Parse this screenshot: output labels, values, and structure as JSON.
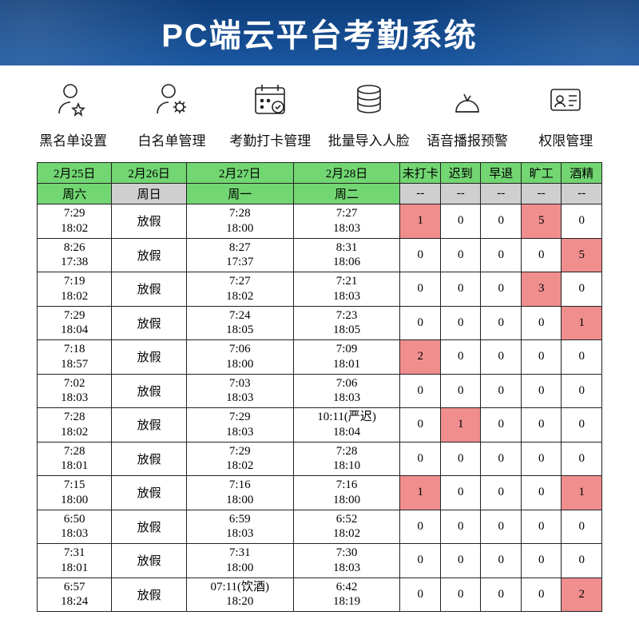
{
  "banner": {
    "title": "PC端云平台考勤系统"
  },
  "nav": {
    "items": [
      {
        "label": "黑名单设置"
      },
      {
        "label": "白名单管理"
      },
      {
        "label": "考勤打卡管理"
      },
      {
        "label": "批量导入人脸"
      },
      {
        "label": "语音播报预警"
      },
      {
        "label": "权限管理"
      }
    ]
  },
  "table": {
    "colors": {
      "header_green": "#72d672",
      "header_gray": "#cfcfcf",
      "highlight": "#f08e8e",
      "border": "#222222"
    },
    "date_headers": [
      "2月25日",
      "2月26日",
      "2月27日",
      "2月28日"
    ],
    "weekday_headers": [
      "周六",
      "周日",
      "周一",
      "周二"
    ],
    "stat_headers": [
      "未打卡",
      "迟到",
      "早退",
      "旷工",
      "酒精"
    ],
    "stat_sub": "--",
    "holiday_text": "放假",
    "rows": [
      {
        "d25_in": "7:29",
        "d25_out": "18:02",
        "d27_in": "7:28",
        "d27_out": "18:00",
        "d28_in": "7:27",
        "d28_out": "18:03",
        "stats": [
          {
            "v": "1",
            "hl": true
          },
          {
            "v": "0"
          },
          {
            "v": "0"
          },
          {
            "v": "5",
            "hl": true
          },
          {
            "v": "0"
          }
        ]
      },
      {
        "d25_in": "8:26",
        "d25_out": "17:38",
        "d27_in": "8:27",
        "d27_out": "17:37",
        "d28_in": "8:31",
        "d28_out": "18:06",
        "stats": [
          {
            "v": "0"
          },
          {
            "v": "0"
          },
          {
            "v": "0"
          },
          {
            "v": "0"
          },
          {
            "v": "5",
            "hl": true
          }
        ]
      },
      {
        "d25_in": "7:19",
        "d25_out": "18:02",
        "d27_in": "7:27",
        "d27_out": "18:02",
        "d28_in": "7:21",
        "d28_out": "18:03",
        "stats": [
          {
            "v": "0"
          },
          {
            "v": "0"
          },
          {
            "v": "0"
          },
          {
            "v": "3",
            "hl": true
          },
          {
            "v": "0"
          }
        ]
      },
      {
        "d25_in": "7:29",
        "d25_out": "18:04",
        "d27_in": "7:24",
        "d27_out": "18:05",
        "d28_in": "7:23",
        "d28_out": "18:05",
        "stats": [
          {
            "v": "0"
          },
          {
            "v": "0"
          },
          {
            "v": "0"
          },
          {
            "v": "0"
          },
          {
            "v": "1",
            "hl": true
          }
        ]
      },
      {
        "d25_in": "7:18",
        "d25_out": "18:57",
        "d27_in": "7:06",
        "d27_out": "18:00",
        "d28_in": "7:09",
        "d28_out": "18:01",
        "stats": [
          {
            "v": "2",
            "hl": true
          },
          {
            "v": "0"
          },
          {
            "v": "0"
          },
          {
            "v": "0"
          },
          {
            "v": "0"
          }
        ]
      },
      {
        "d25_in": "7:02",
        "d25_out": "18:03",
        "d27_in": "7:03",
        "d27_out": "18:03",
        "d28_in": "7:06",
        "d28_out": "18:03",
        "stats": [
          {
            "v": "0"
          },
          {
            "v": "0"
          },
          {
            "v": "0"
          },
          {
            "v": "0"
          },
          {
            "v": "0"
          }
        ]
      },
      {
        "d25_in": "7:28",
        "d25_out": "18:02",
        "d27_in": "7:29",
        "d27_out": "18:03",
        "d28_in": "10:11(严迟)",
        "d28_out": "18:04",
        "stats": [
          {
            "v": "0"
          },
          {
            "v": "1",
            "hl": true
          },
          {
            "v": "0"
          },
          {
            "v": "0"
          },
          {
            "v": "0"
          }
        ]
      },
      {
        "d25_in": "7:28",
        "d25_out": "18:01",
        "d27_in": "7:29",
        "d27_out": "18:02",
        "d28_in": "7:28",
        "d28_out": "18:10",
        "stats": [
          {
            "v": "0"
          },
          {
            "v": "0"
          },
          {
            "v": "0"
          },
          {
            "v": "0"
          },
          {
            "v": "0"
          }
        ]
      },
      {
        "d25_in": "7:15",
        "d25_out": "18:00",
        "d27_in": "7:16",
        "d27_out": "18:00",
        "d28_in": "7:16",
        "d28_out": "18:00",
        "stats": [
          {
            "v": "1",
            "hl": true
          },
          {
            "v": "0"
          },
          {
            "v": "0"
          },
          {
            "v": "0"
          },
          {
            "v": "1",
            "hl": true
          }
        ]
      },
      {
        "d25_in": "6:50",
        "d25_out": "18:03",
        "d27_in": "6:59",
        "d27_out": "18:03",
        "d28_in": "6:52",
        "d28_out": "18:02",
        "stats": [
          {
            "v": "0"
          },
          {
            "v": "0"
          },
          {
            "v": "0"
          },
          {
            "v": "0"
          },
          {
            "v": "0"
          }
        ]
      },
      {
        "d25_in": "7:31",
        "d25_out": "18:01",
        "d27_in": "7:31",
        "d27_out": "18:00",
        "d28_in": "7:30",
        "d28_out": "18:03",
        "stats": [
          {
            "v": "0"
          },
          {
            "v": "0"
          },
          {
            "v": "0"
          },
          {
            "v": "0"
          },
          {
            "v": "0"
          }
        ]
      },
      {
        "d25_in": "6:57",
        "d25_out": "18:24",
        "d27_in": "07:11(饮酒)",
        "d27_out": "18:20",
        "d28_in": "6:42",
        "d28_out": "18:19",
        "stats": [
          {
            "v": "0"
          },
          {
            "v": "0"
          },
          {
            "v": "0"
          },
          {
            "v": "0"
          },
          {
            "v": "2",
            "hl": true
          }
        ]
      }
    ]
  }
}
